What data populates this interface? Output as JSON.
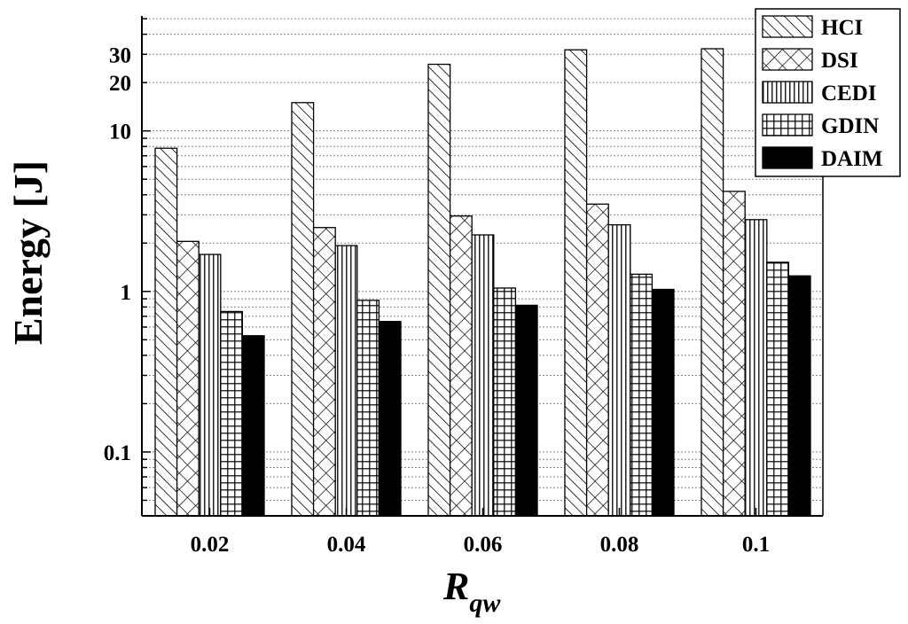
{
  "chart_data": {
    "type": "bar",
    "scale": "log",
    "categories": [
      "0.02",
      "0.04",
      "0.06",
      "0.08",
      "0.1"
    ],
    "series": [
      {
        "name": "HCI",
        "pattern": "diagonal",
        "values": [
          7.8,
          15.0,
          26.0,
          32.0,
          32.5
        ]
      },
      {
        "name": "DSI",
        "pattern": "crosshatch",
        "values": [
          2.05,
          2.5,
          2.95,
          3.5,
          4.2
        ]
      },
      {
        "name": "CEDI",
        "pattern": "vertical",
        "values": [
          1.7,
          1.93,
          2.25,
          2.6,
          2.8
        ]
      },
      {
        "name": "GDIN",
        "pattern": "grid",
        "values": [
          0.75,
          0.88,
          1.05,
          1.28,
          1.52
        ]
      },
      {
        "name": "DAIM",
        "pattern": "solid",
        "values": [
          0.53,
          0.65,
          0.82,
          1.03,
          1.25
        ]
      }
    ],
    "ylim": [
      0.04,
      52
    ],
    "yticks": [
      {
        "value": 0.1,
        "label": "0.1"
      },
      {
        "value": 1,
        "label": "1"
      },
      {
        "value": 10,
        "label": "10"
      },
      {
        "value": 20,
        "label": "20"
      },
      {
        "value": 30,
        "label": "30"
      }
    ],
    "ylabel": "Energy [J]",
    "xlabel_main": "R",
    "xlabel_sub": "qw",
    "legend_position": "top-right",
    "grid": true
  }
}
